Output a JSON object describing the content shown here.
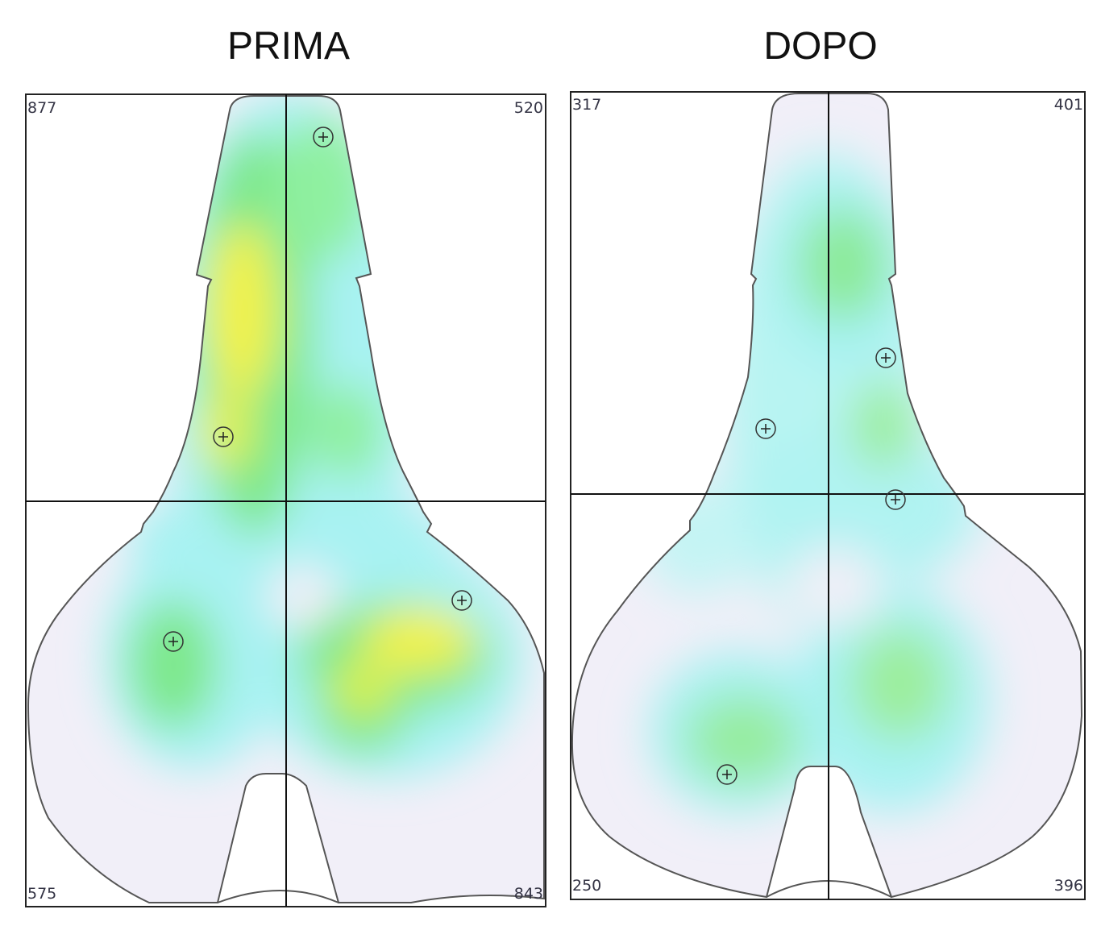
{
  "panels": [
    {
      "title": "PRIMA",
      "corner_values": {
        "top_left": "877",
        "top_right": "520",
        "bottom_left": "575",
        "bottom_right": "843"
      }
    },
    {
      "title": "DOPO",
      "corner_values": {
        "top_left": "317",
        "top_right": "401",
        "bottom_left": "250",
        "bottom_right": "396"
      }
    }
  ],
  "colors": {
    "background_field": "#f1eff8",
    "low_pressure": "#a8f2f2",
    "medium_pressure": "#7ee88c",
    "high_pressure": "#f2f24c",
    "outline": "#555555",
    "axis": "#111111"
  },
  "marker_icon": "crosshair-circle-icon"
}
